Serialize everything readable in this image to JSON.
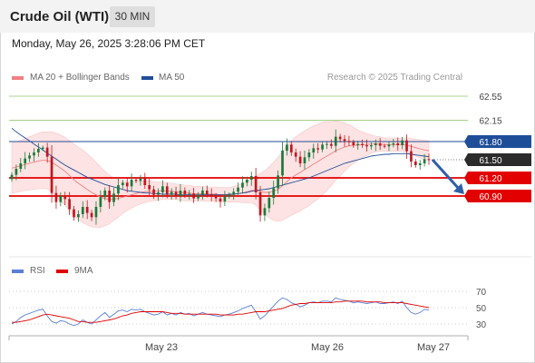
{
  "header": {
    "title": "Crude Oil (WTI)",
    "interval": "30 MIN"
  },
  "timestamp": "Monday, May 26, 2025 3:28:06 PM CET",
  "legend": {
    "ma20": {
      "label": "MA 20 + Bollinger Bands",
      "color": "#f08080"
    },
    "ma50": {
      "label": "MA 50",
      "color": "#1f4e99"
    }
  },
  "copyright": "Research © 2025 Trading Central",
  "rsi_legend": {
    "rsi": {
      "label": "RSI",
      "color": "#5a7fd6"
    },
    "ma9": {
      "label": "9MA",
      "color": "#e00000"
    }
  },
  "colors": {
    "up": "#1c7a3a",
    "down": "#c0181f",
    "support": "#e30000",
    "resistance": "#1f4e99",
    "target": "#2e7d1f",
    "last": "#2b2b2b"
  },
  "chart_data": [
    {
      "type": "candlestick",
      "x_labels": [
        "May 23",
        "May 26",
        "May 27"
      ],
      "y_ticks": [
        "62.55",
        "62.15",
        "61.80",
        "61.50",
        "61.20",
        "60.90"
      ],
      "levels": [
        {
          "value": 62.55,
          "label": "62.55",
          "kind": "target"
        },
        {
          "value": 62.15,
          "label": "62.15",
          "kind": "target"
        },
        {
          "value": 61.8,
          "label": "61.80",
          "kind": "resistance"
        },
        {
          "value": 61.5,
          "label": "61.50",
          "kind": "last"
        },
        {
          "value": 61.2,
          "label": "61.20",
          "kind": "support"
        },
        {
          "value": 60.9,
          "label": "60.90",
          "kind": "support"
        }
      ],
      "last_price": 61.5,
      "close": [
        61.25,
        61.35,
        61.44,
        61.52,
        61.57,
        61.62,
        61.68,
        61.7,
        61.55,
        60.95,
        60.8,
        60.9,
        60.85,
        60.68,
        60.55,
        60.6,
        60.72,
        60.62,
        60.55,
        60.72,
        60.88,
        60.99,
        60.8,
        60.94,
        61.08,
        61.12,
        61.06,
        61.17,
        61.15,
        61.19,
        61.08,
        61.01,
        60.92,
        60.96,
        61.06,
        60.92,
        60.97,
        60.9,
        60.99,
        60.93,
        60.94,
        60.86,
        60.92,
        60.99,
        60.93,
        60.9,
        60.86,
        60.81,
        60.89,
        60.92,
        60.97,
        61.04,
        61.12,
        61.17,
        61.23,
        60.96,
        60.58,
        60.7,
        60.87,
        61.03,
        61.24,
        61.65,
        61.75,
        61.62,
        61.55,
        61.44,
        61.54,
        61.62,
        61.69,
        61.67,
        61.75,
        61.76,
        61.73,
        61.88,
        61.84,
        61.81,
        61.79,
        61.74,
        61.76,
        61.74,
        61.72,
        61.74,
        61.77,
        61.73,
        61.72,
        61.75,
        61.77,
        61.74,
        61.82,
        61.64,
        61.47,
        61.41,
        61.44,
        61.51,
        61.5
      ],
      "open_first": 61.18,
      "ma20": [
        61.36,
        61.38,
        61.4,
        61.42,
        61.44,
        61.46,
        61.48,
        61.49,
        61.49,
        61.46,
        61.41,
        61.36,
        61.31,
        61.24,
        61.17,
        61.11,
        61.06,
        61.01,
        60.96,
        60.92,
        60.88,
        60.86,
        60.84,
        60.85,
        60.86,
        60.88,
        60.9,
        60.92,
        60.94,
        60.96,
        60.97,
        60.98,
        60.98,
        60.98,
        60.99,
        60.98,
        60.98,
        60.97,
        60.96,
        60.95,
        60.95,
        60.94,
        60.94,
        60.94,
        60.93,
        60.93,
        60.93,
        60.92,
        60.92,
        60.92,
        60.93,
        60.94,
        60.95,
        60.97,
        60.99,
        60.99,
        60.97,
        60.96,
        60.96,
        60.98,
        61.01,
        61.07,
        61.14,
        61.2,
        61.25,
        61.29,
        61.34,
        61.38,
        61.43,
        61.47,
        61.52,
        61.56,
        61.6,
        61.65,
        61.68,
        61.71,
        61.73,
        61.74,
        61.74,
        61.75,
        61.75,
        61.76,
        61.76,
        61.76,
        61.75,
        61.75,
        61.75,
        61.75,
        61.75,
        61.74,
        61.72,
        61.7,
        61.68,
        61.66,
        61.65
      ],
      "bb_width": [
        0.42,
        0.42,
        0.42,
        0.43,
        0.44,
        0.45,
        0.46,
        0.47,
        0.47,
        0.5,
        0.53,
        0.55,
        0.56,
        0.58,
        0.59,
        0.6,
        0.6,
        0.59,
        0.57,
        0.54,
        0.5,
        0.45,
        0.4,
        0.35,
        0.31,
        0.27,
        0.24,
        0.22,
        0.2,
        0.19,
        0.18,
        0.17,
        0.16,
        0.15,
        0.14,
        0.14,
        0.13,
        0.13,
        0.13,
        0.13,
        0.13,
        0.12,
        0.12,
        0.12,
        0.12,
        0.12,
        0.12,
        0.12,
        0.12,
        0.12,
        0.13,
        0.14,
        0.16,
        0.18,
        0.2,
        0.24,
        0.3,
        0.36,
        0.42,
        0.48,
        0.53,
        0.57,
        0.6,
        0.62,
        0.63,
        0.64,
        0.64,
        0.64,
        0.63,
        0.62,
        0.6,
        0.57,
        0.53,
        0.49,
        0.45,
        0.4,
        0.35,
        0.3,
        0.25,
        0.21,
        0.18,
        0.15,
        0.13,
        0.12,
        0.11,
        0.11,
        0.11,
        0.11,
        0.11,
        0.12,
        0.13,
        0.14,
        0.15,
        0.16,
        0.16
      ],
      "ma50": [
        62.02,
        61.96,
        61.91,
        61.86,
        61.81,
        61.76,
        61.71,
        61.66,
        61.61,
        61.56,
        61.51,
        61.46,
        61.41,
        61.37,
        61.33,
        61.29,
        61.25,
        61.21,
        61.18,
        61.15,
        61.12,
        61.09,
        61.07,
        61.05,
        61.03,
        61.01,
        60.99,
        60.98,
        60.97,
        60.96,
        60.95,
        60.95,
        60.94,
        60.94,
        60.93,
        60.93,
        60.93,
        60.93,
        60.92,
        60.92,
        60.92,
        60.92,
        60.92,
        60.92,
        60.92,
        60.92,
        60.92,
        60.92,
        60.92,
        60.93,
        60.93,
        60.94,
        60.95,
        60.96,
        60.98,
        60.99,
        61.0,
        61.01,
        61.02,
        61.04,
        61.06,
        61.08,
        61.1,
        61.12,
        61.14,
        61.16,
        61.18,
        61.2,
        61.23,
        61.26,
        61.29,
        61.32,
        61.35,
        61.38,
        61.41,
        61.44,
        61.46,
        61.48,
        61.5,
        61.52,
        61.54,
        61.56,
        61.57,
        61.58,
        61.59,
        61.59,
        61.6,
        61.6,
        61.6,
        61.6,
        61.59,
        61.58,
        61.57,
        61.56,
        61.55
      ],
      "forecast_arrow": {
        "from": 61.5,
        "to": 60.9
      }
    },
    {
      "type": "line",
      "name": "RSI",
      "y_ticks": [
        "70",
        "50",
        "30"
      ],
      "ylim": [
        30,
        70
      ],
      "rsi": [
        30,
        33,
        38,
        41,
        43,
        45,
        47,
        48,
        40,
        33,
        31,
        34,
        33,
        30,
        28,
        30,
        35,
        32,
        30,
        35,
        40,
        44,
        38,
        42,
        46,
        47,
        45,
        48,
        47,
        48,
        45,
        43,
        41,
        42,
        45,
        41,
        43,
        41,
        44,
        42,
        43,
        40,
        42,
        44,
        42,
        41,
        40,
        39,
        41,
        42,
        44,
        46,
        49,
        51,
        53,
        45,
        36,
        40,
        46,
        52,
        58,
        62,
        60,
        56,
        54,
        51,
        53,
        56,
        57,
        56,
        58,
        58,
        57,
        62,
        60,
        59,
        58,
        56,
        57,
        56,
        55,
        56,
        57,
        55,
        55,
        56,
        57,
        55,
        58,
        50,
        44,
        42,
        44,
        48,
        47
      ],
      "ma9": [
        32,
        32,
        33,
        34,
        35,
        37,
        39,
        41,
        42,
        41,
        40,
        39,
        38,
        37,
        35,
        33,
        33,
        32,
        32,
        32,
        33,
        34,
        35,
        36,
        38,
        40,
        41,
        43,
        44,
        45,
        45,
        45,
        45,
        45,
        45,
        44,
        43,
        43,
        43,
        42,
        42,
        42,
        42,
        42,
        42,
        42,
        42,
        41,
        41,
        41,
        41,
        42,
        42,
        43,
        44,
        45,
        45,
        45,
        46,
        47,
        48,
        49,
        51,
        53,
        54,
        55,
        55,
        56,
        56,
        56,
        56,
        56,
        56,
        57,
        57,
        58,
        58,
        58,
        58,
        58,
        57,
        57,
        57,
        57,
        56,
        56,
        56,
        56,
        56,
        55,
        54,
        53,
        52,
        51,
        50
      ]
    }
  ]
}
